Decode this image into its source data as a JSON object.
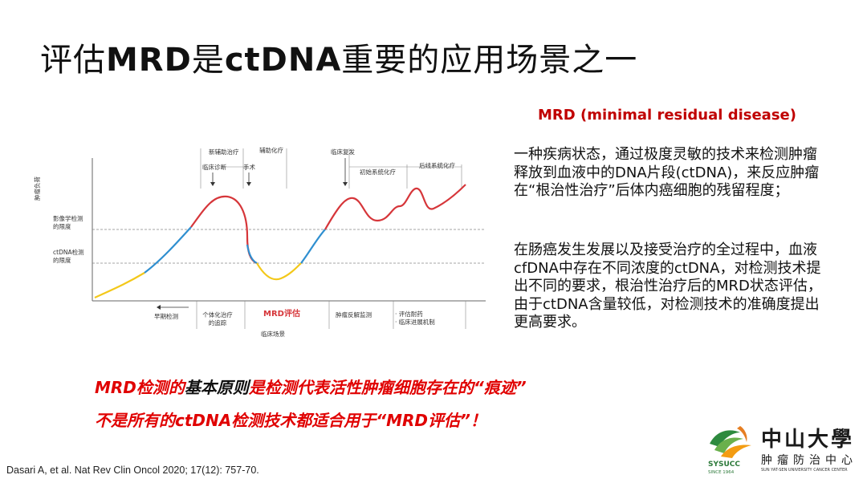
{
  "slide": {
    "title_part1": "评估",
    "title_part2": "MRD",
    "title_part3": "是",
    "title_part4": "ctDNA",
    "title_part5": "重要的应用场景之一"
  },
  "figure": {
    "ylabel": "肿瘤负荷",
    "thresholds": [
      "影像学检测\n的限度",
      "ctDNA检测\n的限度"
    ],
    "top_labels": [
      "新辅助治疗",
      "辅助化疗",
      "临床诊断",
      "手术",
      "临床复发",
      "初始系统化疗",
      "后线系统化疗"
    ],
    "bottom_labels": [
      "早期检测",
      "个体化治疗\n的追踪",
      "MRD评估",
      "肿瘤反解监测",
      "评估耐药",
      "临床进展机制"
    ],
    "xlabel": "临床场景",
    "colors": {
      "yellow": "#f3c81a",
      "blue": "#2f8fd0",
      "red": "#d6363a"
    }
  },
  "right_panel": {
    "heading": "MRD (minimal residual disease)",
    "para1": "一种疾病状态，通过极度灵敏的技术来检测肿瘤释放到血液中的DNA片段(ctDNA)，来反应肿瘤在“根治性治疗”后体内癌细胞的残留程度；",
    "para2": "在肠癌发生发展以及接受治疗的全过程中，血液cfDNA中存在不同浓度的ctDNA，对检测技术提出不同的要求，根治性治疗后的MRD状态评估，由于ctDNA含量较低，对检测技术的准确度提出更高要求。"
  },
  "statement": {
    "line1_a": "MRD检测的",
    "line1_b": "基本原则",
    "line1_c": "是检测代表活性肿瘤细胞存在的“痕迹”",
    "line2": "不是所有的ctDNA检测技术都适合用于“MRD评估”！"
  },
  "citation": "Dasari A, et al. Nat Rev Clin Oncol 2020; 17(12): 757-70.",
  "logo": {
    "name_cn": "中山大學",
    "subtitle_cn": "肿瘤防治中心",
    "name_en": "SUN YAT-SEN UNIVERSITY CANCER CENTER",
    "abbr": "SYSUCC",
    "since": "SINCE 1964"
  }
}
